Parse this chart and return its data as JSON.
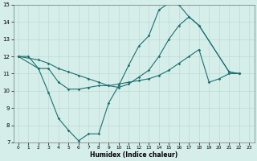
{
  "xlabel": "Humidex (Indice chaleur)",
  "xlim": [
    -0.5,
    23.5
  ],
  "ylim": [
    7,
    15
  ],
  "yticks": [
    7,
    8,
    9,
    10,
    11,
    12,
    13,
    14,
    15
  ],
  "xticks": [
    0,
    1,
    2,
    3,
    4,
    5,
    6,
    7,
    8,
    9,
    10,
    11,
    12,
    13,
    14,
    15,
    16,
    17,
    18,
    19,
    20,
    21,
    22,
    23
  ],
  "bg_color": "#d6eeea",
  "line_color": "#1a7070",
  "line1_x": [
    0,
    1,
    2,
    3,
    4,
    5,
    6,
    7,
    8,
    9,
    10,
    11,
    12,
    13,
    14,
    15,
    16,
    17,
    18,
    21,
    22
  ],
  "line1_y": [
    12,
    12,
    11.3,
    9.9,
    8.4,
    7.7,
    7.1,
    7.5,
    7.5,
    9.3,
    10.3,
    11.5,
    12.6,
    13.2,
    14.7,
    15.1,
    15.0,
    14.3,
    13.8,
    11.1,
    11.0
  ],
  "line2_x": [
    0,
    2,
    3,
    4,
    5,
    6,
    7,
    8,
    9,
    10,
    11,
    12,
    13,
    14,
    15,
    16,
    17,
    18,
    21,
    22
  ],
  "line2_y": [
    12,
    11.8,
    11.6,
    11.3,
    11.1,
    10.9,
    10.7,
    10.5,
    10.3,
    10.2,
    10.4,
    10.8,
    11.2,
    12.0,
    13.0,
    13.8,
    14.3,
    13.8,
    11.1,
    11.0
  ],
  "line3_x": [
    0,
    2,
    3,
    4,
    5,
    6,
    7,
    8,
    9,
    10,
    11,
    12,
    13,
    14,
    15,
    16,
    17,
    18,
    19,
    20,
    21,
    22
  ],
  "line3_y": [
    12,
    11.3,
    11.3,
    10.5,
    10.1,
    10.1,
    10.2,
    10.3,
    10.3,
    10.4,
    10.5,
    10.6,
    10.7,
    10.9,
    11.2,
    11.6,
    12.0,
    12.4,
    10.5,
    10.7,
    11.0,
    11.0
  ]
}
